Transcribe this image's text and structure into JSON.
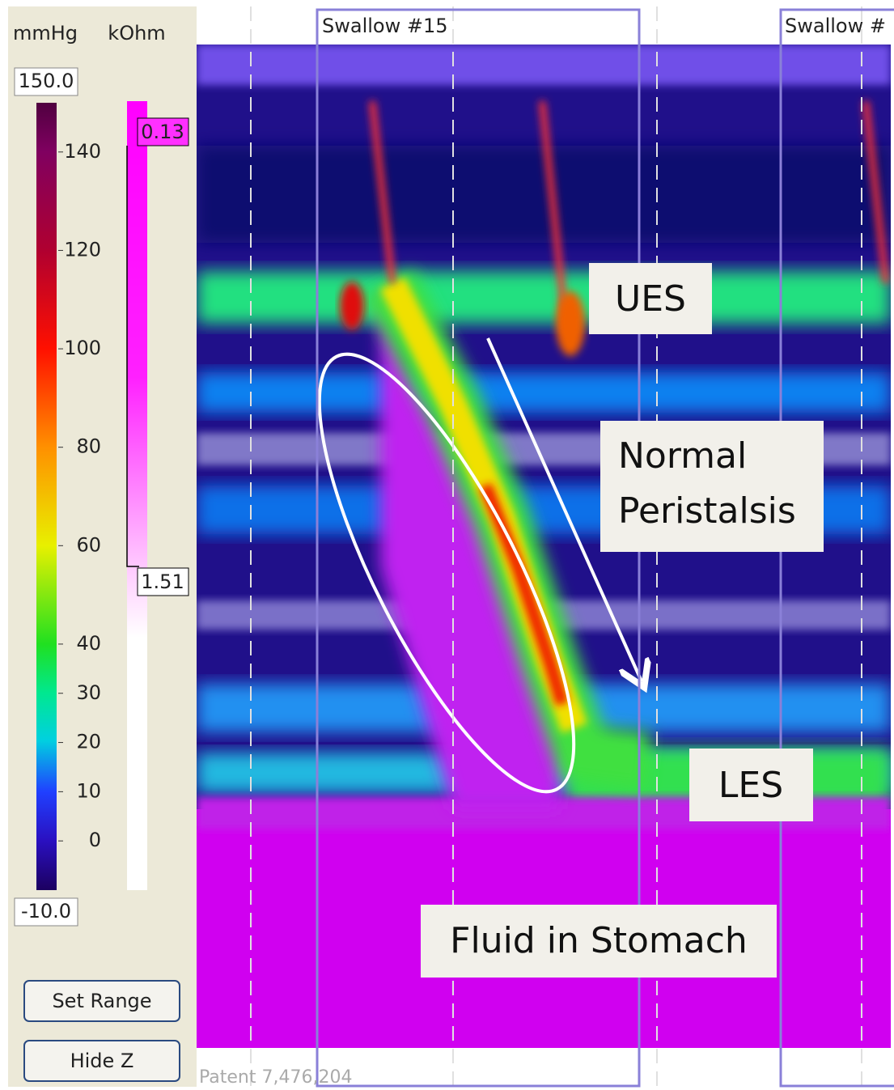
{
  "sidebar": {
    "pressure_unit": "mmHg",
    "impedance_unit": "kOhm",
    "pressure_scale": {
      "range": [
        {
          "value": -10,
          "label": "-10.0"
        },
        {
          "value": 150,
          "label": "150.0"
        }
      ],
      "ticks": [
        140,
        120,
        100,
        80,
        60,
        40,
        30,
        20,
        10,
        0
      ]
    },
    "impedance_markers": [
      "0.13",
      "1.51"
    ],
    "buttons": [
      "Set Range",
      "Hide Z"
    ]
  },
  "plot": {
    "swallows": [
      "Swallow #15",
      "Swallow #"
    ],
    "annotations": [
      "UES",
      "Normal Peristalsis",
      "LES",
      "Fluid in Stomach"
    ],
    "footer": "Patent 7,476,204"
  }
}
